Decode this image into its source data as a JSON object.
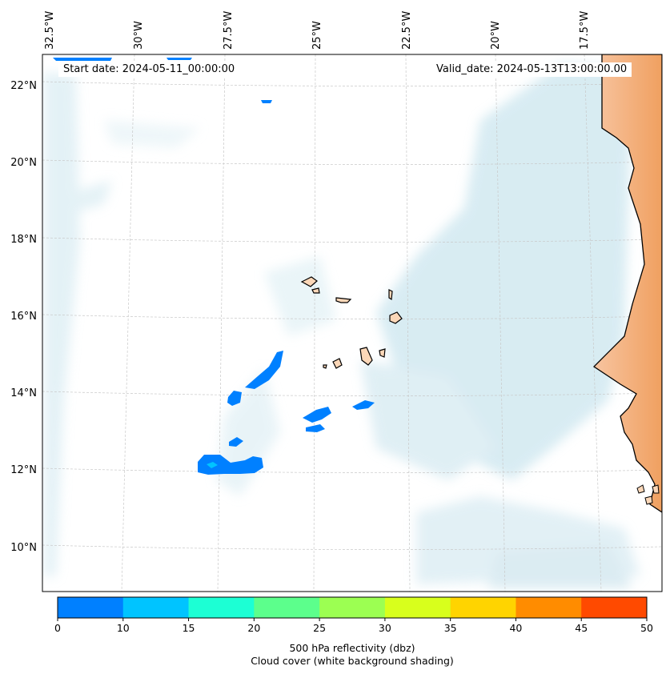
{
  "map": {
    "lon_ticks": [
      "32.5°W",
      "30°W",
      "27.5°W",
      "25°W",
      "22.5°W",
      "20°W",
      "17.5°W"
    ],
    "lat_ticks": [
      "22°N",
      "20°N",
      "18°N",
      "16°N",
      "14°N",
      "12°N",
      "10°N"
    ],
    "start_date": "Start date: 2024-05-11_00:00:00",
    "valid_date": "Valid_date: 2024-05-13T13:00:00.00",
    "region": "Cape Verde islands and West African coast (Senegal)",
    "land_color": "#f4a361",
    "island_color": "#fbd7b8",
    "cloud_color": "#a9d6e5"
  },
  "colorbar": {
    "title": "500 hPa reflectivity (dbz)",
    "subtitle": "Cloud cover (white background shading)",
    "ticks": [
      "0",
      "10",
      "15",
      "20",
      "25",
      "30",
      "35",
      "40",
      "45",
      "50"
    ],
    "colors": [
      "#0080ff",
      "#00c4ff",
      "#1cffd4",
      "#5cff8c",
      "#9cff52",
      "#d8ff1c",
      "#ffd400",
      "#ff8c00",
      "#ff4a00"
    ]
  }
}
